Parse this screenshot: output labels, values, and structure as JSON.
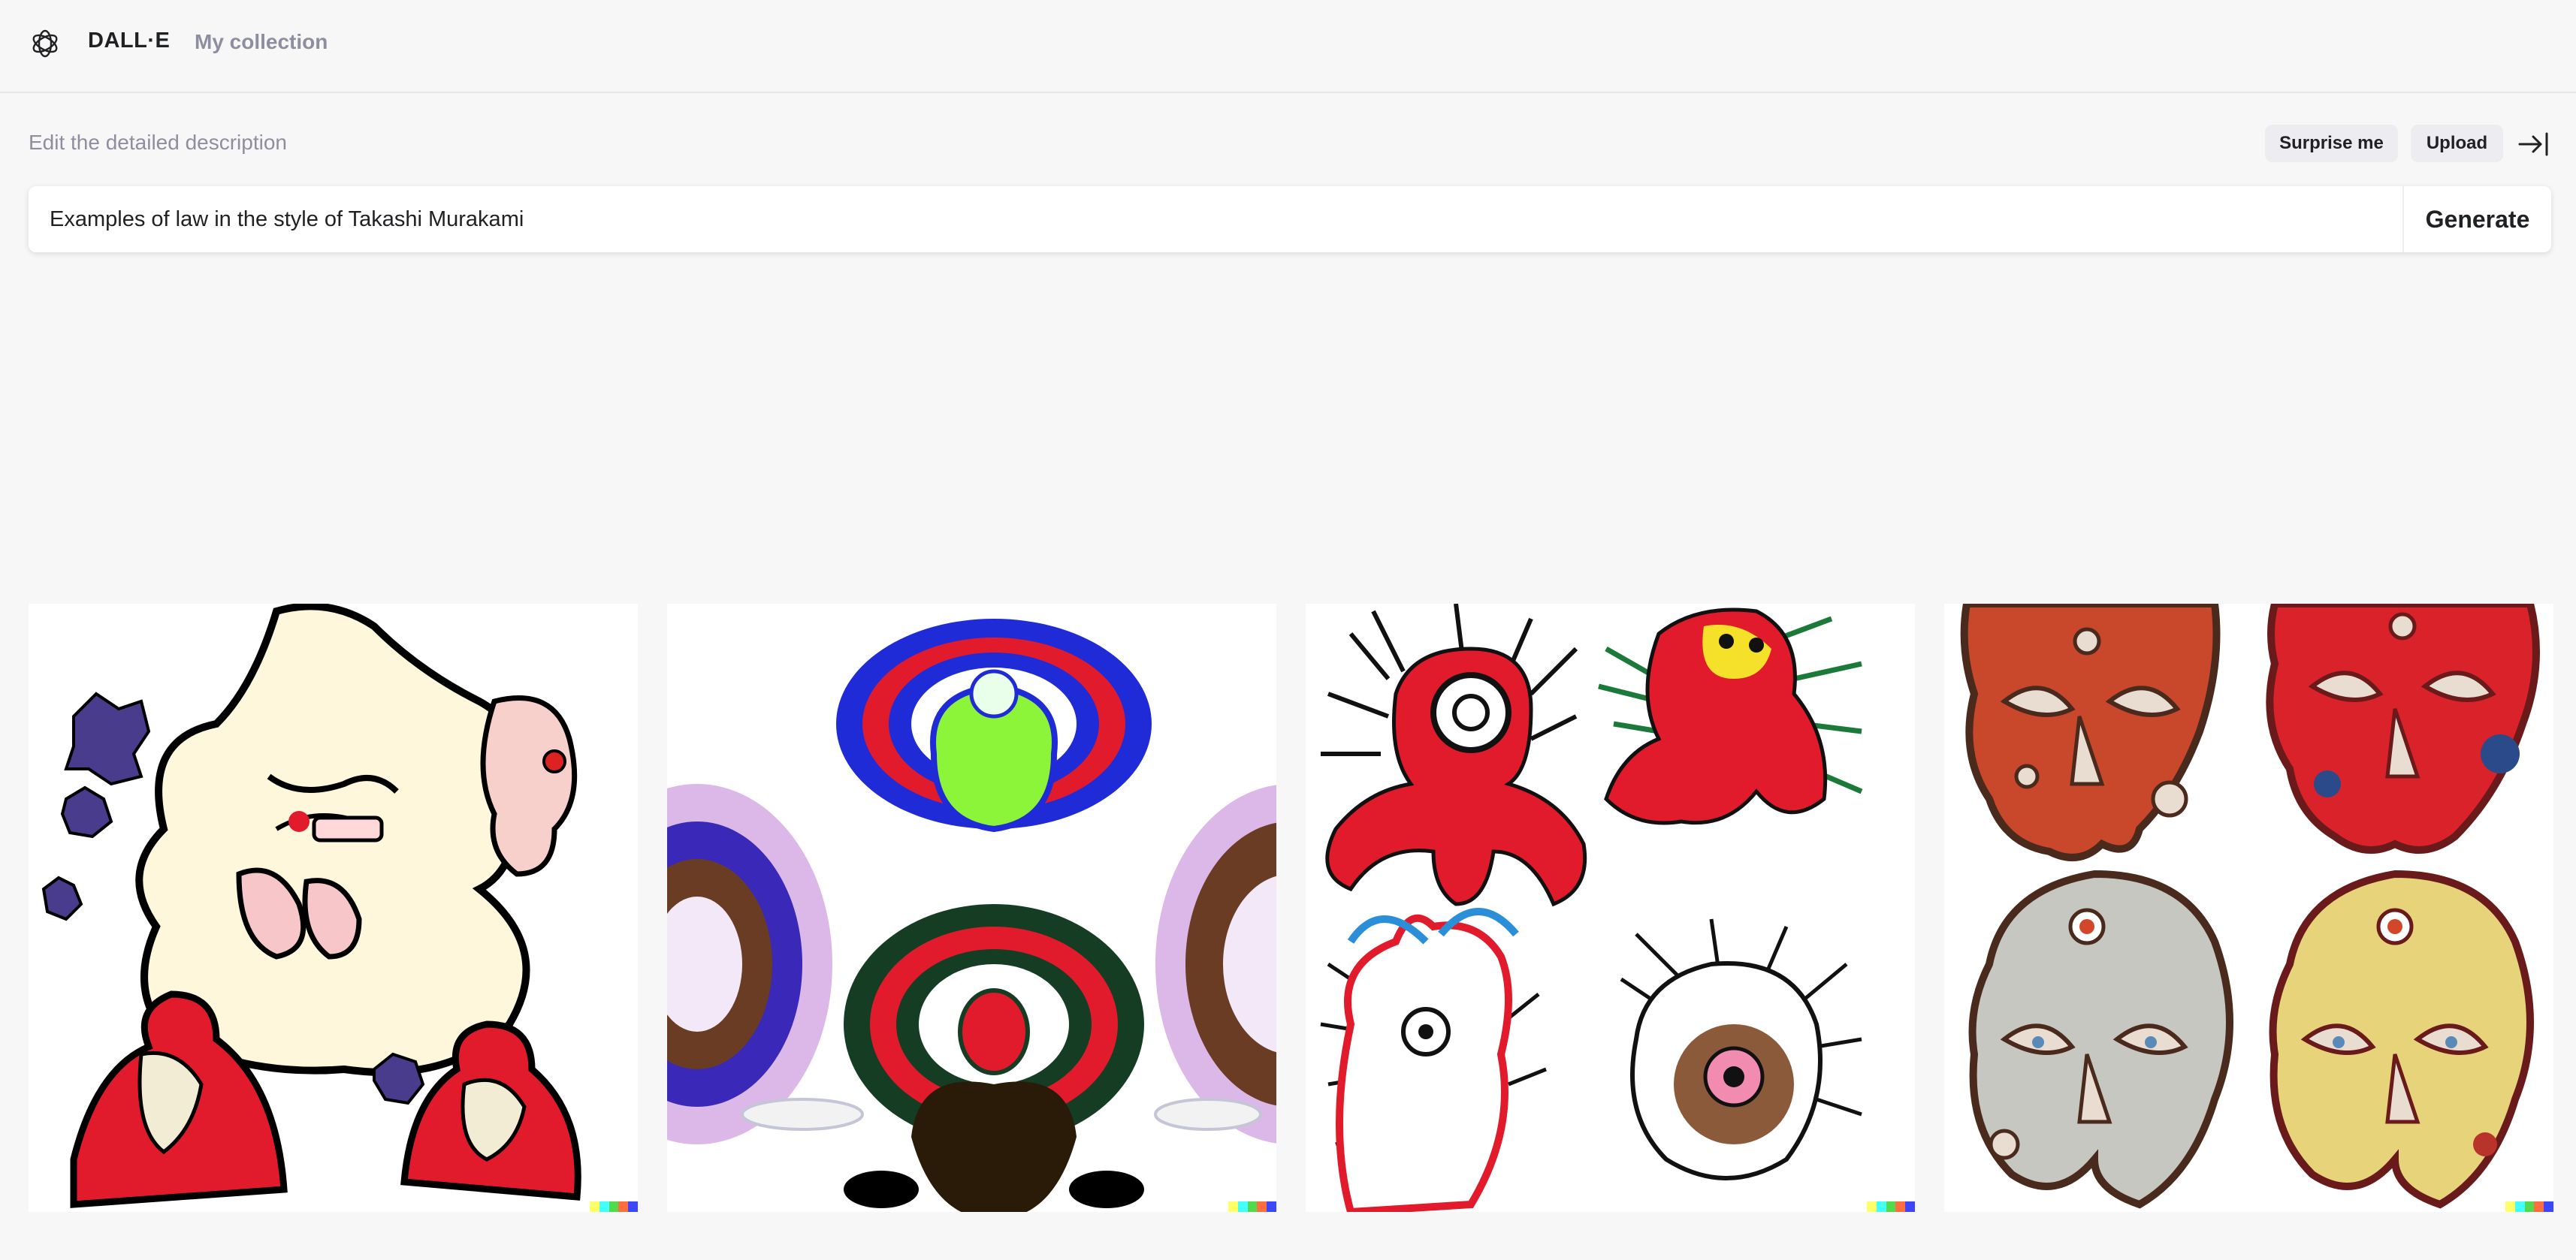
{
  "header": {
    "brand": "DALL·E",
    "nav_collection": "My collection",
    "logo_icon": "openai-logo-icon"
  },
  "editor": {
    "label": "Edit the detailed description",
    "surprise_label": "Surprise me",
    "upload_label": "Upload",
    "collapse_icon": "arrow-right-to-bar-icon",
    "prompt_value": "Examples of law in the style of Takashi Murakami",
    "generate_label": "Generate"
  },
  "results": {
    "images": [
      {
        "name": "generated-image-1",
        "description_icon": "cartoon-figures-illustration"
      },
      {
        "name": "generated-image-2",
        "description_icon": "radial-feather-figures-illustration"
      },
      {
        "name": "generated-image-3",
        "description_icon": "scribble-creatures-illustration"
      },
      {
        "name": "generated-image-4",
        "description_icon": "patterned-masks-illustration"
      }
    ],
    "signature_colors": [
      "#ffff66",
      "#42ffff",
      "#51da4c",
      "#ff6e3c",
      "#3c46ff"
    ]
  }
}
